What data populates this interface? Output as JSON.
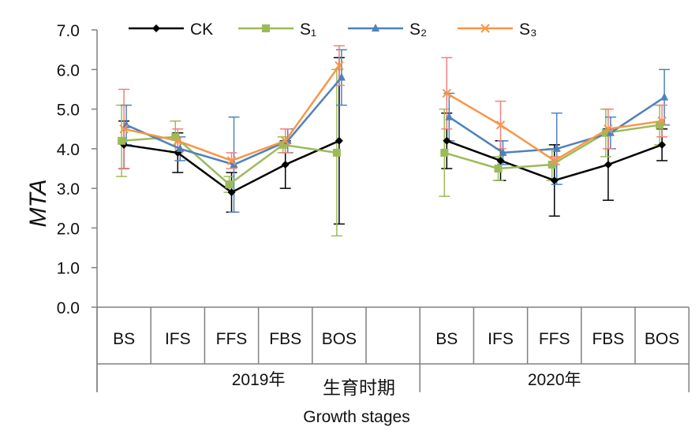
{
  "chart_data": {
    "type": "line",
    "ylabel": "MTA",
    "xlabel_cn": "生育时期",
    "xlabel_en": "Growth stages",
    "ylim": [
      0,
      7
    ],
    "yticks": [
      "0.0",
      "1.0",
      "2.0",
      "3.0",
      "4.0",
      "5.0",
      "6.0",
      "7.0"
    ],
    "groups": [
      {
        "label": "2019年",
        "categories": [
          "BS",
          "IFS",
          "FFS",
          "FBS",
          "BOS",
          ""
        ]
      },
      {
        "label": "2020年",
        "categories": [
          "BS",
          "IFS",
          "FFS",
          "FBS",
          "BOS"
        ]
      }
    ],
    "legend_position": "top",
    "series": [
      {
        "name": "CK",
        "color": "#000000",
        "marker": "diamond",
        "values": [
          [
            4.1,
            3.9,
            2.9,
            3.6,
            4.2,
            null
          ],
          [
            4.2,
            3.7,
            3.2,
            3.6,
            4.1
          ]
        ],
        "err": [
          [
            0.6,
            0.5,
            0.5,
            0.6,
            2.1,
            null
          ],
          [
            0.7,
            0.5,
            0.9,
            0.9,
            0.4
          ]
        ]
      },
      {
        "name": "S₁",
        "color": "#9bbb59",
        "marker": "square",
        "values": [
          [
            4.2,
            4.3,
            3.1,
            4.1,
            3.9,
            null
          ],
          [
            3.9,
            3.5,
            3.6,
            4.4,
            4.6
          ]
        ],
        "err": [
          [
            0.9,
            0.4,
            0.2,
            0.2,
            2.1,
            null
          ],
          [
            1.1,
            0.3,
            0.4,
            0.6,
            0.5
          ]
        ]
      },
      {
        "name": "S₂",
        "color": "#4f81bd",
        "marker": "triangle",
        "values": [
          [
            4.6,
            4.0,
            3.6,
            4.2,
            5.8,
            null
          ],
          [
            4.8,
            3.9,
            4.0,
            4.4,
            5.3
          ]
        ],
        "err": [
          [
            0.5,
            0.3,
            1.2,
            0.3,
            0.7,
            null
          ],
          [
            0.6,
            0.3,
            0.9,
            0.4,
            0.7
          ]
        ]
      },
      {
        "name": "S₃",
        "color": "#f79646",
        "marker": "x",
        "values": [
          [
            4.5,
            4.2,
            3.7,
            4.2,
            6.1,
            null
          ],
          [
            5.4,
            4.6,
            3.7,
            4.5,
            4.7
          ]
        ],
        "err": [
          [
            1.0,
            0.3,
            0.2,
            0.3,
            0.5,
            null
          ],
          [
            0.9,
            0.6,
            0.1,
            0.5,
            0.4
          ]
        ]
      }
    ]
  }
}
